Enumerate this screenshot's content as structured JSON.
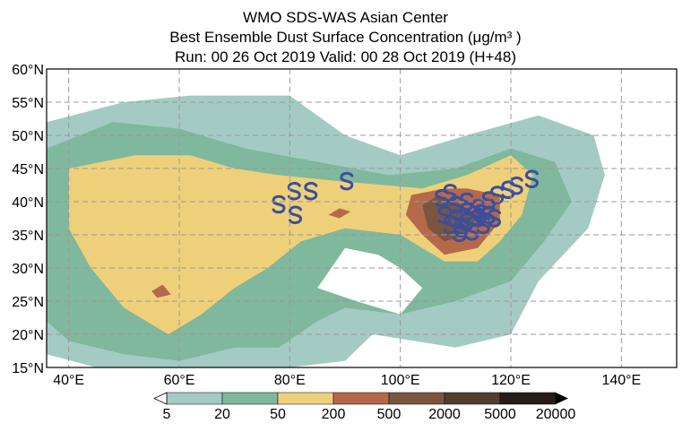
{
  "title": {
    "line1": "WMO SDS-WAS Asian Center",
    "line2": "Best Ensemble Dust Surface Concentration (μg/m³ )",
    "line3": "Run: 00 26 Oct 2019    Valid: 00 28 Oct 2019 (H+48)"
  },
  "map": {
    "lon_range": [
      36,
      150
    ],
    "lat_range": [
      15,
      60
    ],
    "lat_labels": [
      "60°N",
      "55°N",
      "50°N",
      "45°N",
      "40°N",
      "35°N",
      "30°N",
      "25°N",
      "20°N",
      "15°N"
    ],
    "lat_values": [
      60,
      55,
      50,
      45,
      40,
      35,
      30,
      25,
      20,
      15
    ],
    "lon_labels": [
      "40°E",
      "60°E",
      "80°E",
      "100°E",
      "120°E",
      "140°E"
    ],
    "lon_values": [
      40,
      60,
      80,
      100,
      120,
      140
    ],
    "marker_symbol": "S",
    "marker_color": "#3a4f9c",
    "markers": [
      [
        78,
        39.6
      ],
      [
        80.8,
        41.6
      ],
      [
        83.8,
        41.6
      ],
      [
        90.3,
        43.1
      ],
      [
        81,
        38
      ],
      [
        109,
        41.3
      ],
      [
        107.5,
        40.5
      ],
      [
        110,
        39.5
      ],
      [
        112,
        40
      ],
      [
        114,
        39
      ],
      [
        116,
        40.2
      ],
      [
        117.5,
        41
      ],
      [
        119.5,
        41.8
      ],
      [
        121,
        42.4
      ],
      [
        123.8,
        43.4
      ],
      [
        108,
        38
      ],
      [
        110,
        37.5
      ],
      [
        112,
        37
      ],
      [
        114,
        37.5
      ],
      [
        116,
        38
      ],
      [
        111,
        36
      ],
      [
        113,
        35.5
      ],
      [
        109,
        36.5
      ],
      [
        115,
        36.5
      ],
      [
        117,
        37.5
      ],
      [
        110.7,
        35.3
      ],
      [
        112,
        38.5
      ],
      [
        114.5,
        38.2
      ]
    ]
  },
  "colorbar": {
    "labels": [
      "5",
      "20",
      "50",
      "200",
      "500",
      "2000",
      "5000",
      "20000"
    ],
    "colors": [
      "#a3cbc4",
      "#7fb89c",
      "#efd07a",
      "#b5694b",
      "#7a5640",
      "#543c30",
      "#281c18"
    ]
  }
}
